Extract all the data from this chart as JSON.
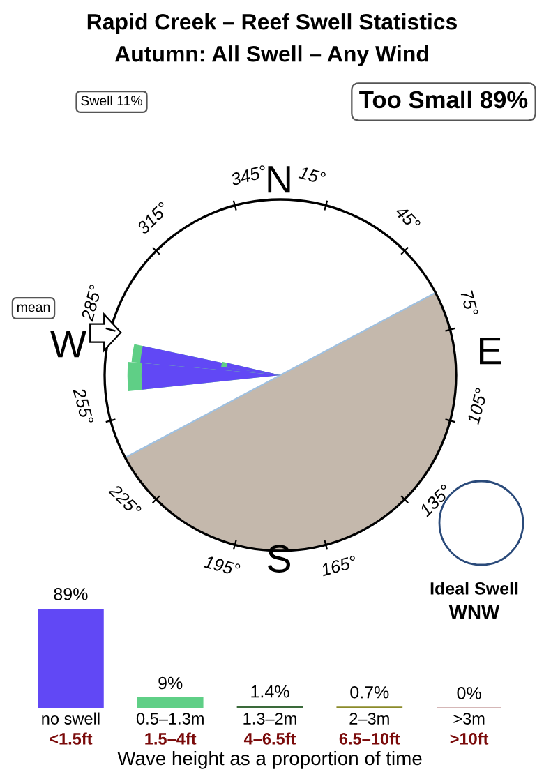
{
  "chart_data": [
    {
      "type": "other",
      "title": "Rapid Creek – Reef Swell Statistics",
      "subtitle": "Autumn: All Swell – Any Wind",
      "annotations": [
        "Swell 11%",
        "Too Small 89%",
        "mean",
        "N",
        "E",
        "S",
        "W",
        "Ideal Swell",
        "WNW",
        "345°",
        "15°",
        "45°",
        "75°",
        "105°",
        "135°",
        "165°",
        "195°",
        "225°",
        "255°",
        "285°",
        "315°"
      ]
    },
    {
      "type": "bar",
      "categories": [
        "no swell",
        "0.5–1.3m",
        "1.3–2m",
        "2–3m",
        ">3m"
      ],
      "values": [
        89,
        9,
        1.4,
        0.7,
        0
      ],
      "colors": [
        "#6148f5",
        "#5fcf86",
        "#3a6a3a",
        "#8b8b2a",
        "#c8a0a0"
      ],
      "value_labels": [
        "89%",
        "9%",
        "1.4%",
        "0.7%",
        "0%"
      ],
      "xlabel": "Wave height as a proportion of time",
      "annotations": [
        "<1.5ft",
        "1.5–4ft",
        "4–6.5ft",
        "6.5–10ft",
        ">10ft"
      ]
    }
  ]
}
